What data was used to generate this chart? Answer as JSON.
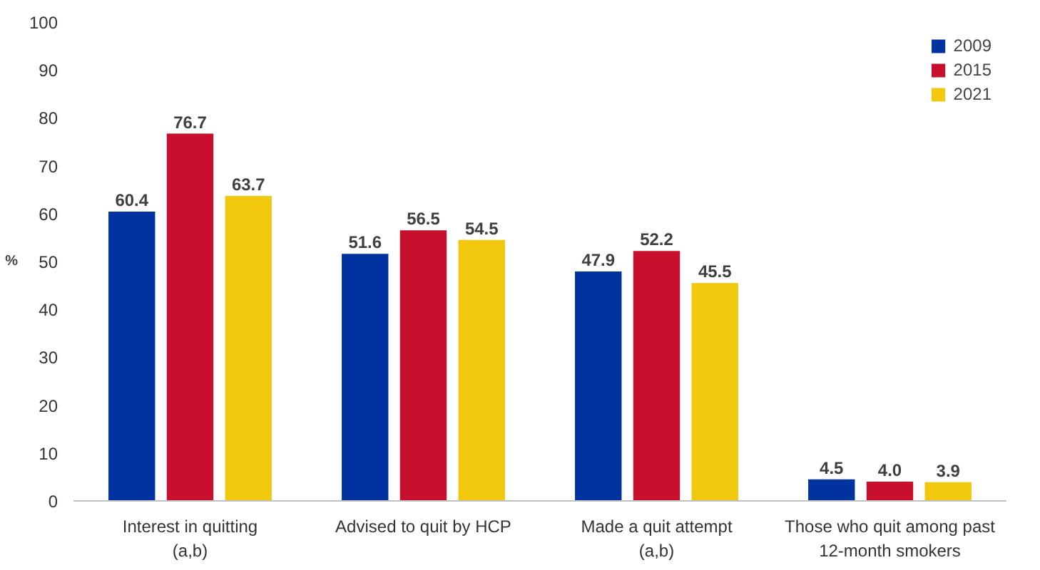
{
  "chart_data": {
    "type": "bar",
    "ylabel": "%",
    "categories": [
      "Interest in quitting\n(a,b)",
      "Advised to quit by HCP",
      "Made a quit attempt\n(a,b)",
      "Those who quit among past\n12-month smokers"
    ],
    "series": [
      {
        "name": "2009",
        "color": "#0033a0",
        "values": [
          60.4,
          51.6,
          47.9,
          4.5
        ],
        "value_labels": [
          "60.4",
          "51.6",
          "47.9",
          "4.5"
        ]
      },
      {
        "name": "2015",
        "color": "#c8102e",
        "values": [
          76.7,
          56.5,
          52.2,
          4.0
        ],
        "value_labels": [
          "76.7",
          "56.5",
          "52.2",
          "4.0"
        ]
      },
      {
        "name": "2021",
        "color": "#f2c80f",
        "values": [
          63.7,
          54.5,
          45.5,
          3.9
        ],
        "value_labels": [
          "63.7",
          "54.5",
          "45.5",
          "3.9"
        ]
      }
    ],
    "ylim": [
      0,
      100
    ],
    "yticks": [
      0,
      10,
      20,
      30,
      40,
      50,
      60,
      70,
      80,
      90,
      100
    ],
    "grid": false,
    "legend": "top right"
  }
}
